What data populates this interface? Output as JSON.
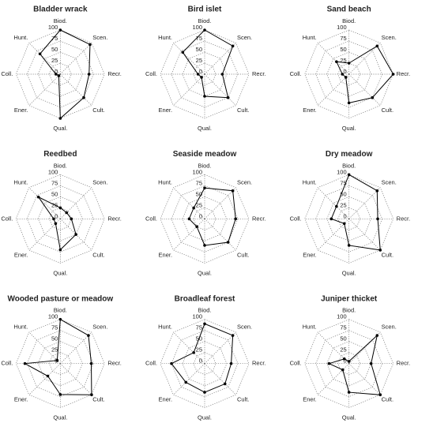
{
  "chart_data": [
    {
      "type": "radar",
      "title": "Bladder wrack",
      "categories": [
        "Biod.",
        "Scen.",
        "Recr.",
        "Cult.",
        "Qual.",
        "Ener.",
        "Coll.",
        "Hunt."
      ],
      "values": [
        100,
        95,
        65,
        75,
        100,
        5,
        10,
        65
      ],
      "rlim": [
        0,
        100
      ],
      "rticks": [
        0,
        25,
        50,
        75,
        100
      ],
      "color": "#000000"
    },
    {
      "type": "radar",
      "title": "Bird islet",
      "categories": [
        "Biod.",
        "Scen.",
        "Recr.",
        "Cult.",
        "Qual.",
        "Ener.",
        "Coll.",
        "Hunt."
      ],
      "values": [
        100,
        90,
        40,
        75,
        50,
        10,
        15,
        70
      ],
      "rlim": [
        0,
        100
      ],
      "rticks": [
        0,
        25,
        50,
        75,
        100
      ],
      "color": "#000000"
    },
    {
      "type": "radar",
      "title": "Sand beach",
      "categories": [
        "Biod.",
        "Scen.",
        "Recr.",
        "Cult.",
        "Qual.",
        "Ener.",
        "Coll.",
        "Hunt."
      ],
      "values": [
        25,
        90,
        100,
        75,
        65,
        10,
        15,
        40
      ],
      "rlim": [
        0,
        100
      ],
      "rticks": [
        0,
        25,
        50,
        75,
        100
      ],
      "color": "#000000"
    },
    {
      "type": "radar",
      "title": "Reedbed",
      "categories": [
        "Biod.",
        "Scen.",
        "Recr.",
        "Cult.",
        "Qual.",
        "Ener.",
        "Coll.",
        "Hunt."
      ],
      "values": [
        25,
        20,
        25,
        50,
        70,
        15,
        15,
        70
      ],
      "rlim": [
        0,
        100
      ],
      "rticks": [
        0,
        25,
        50,
        75,
        100
      ],
      "color": "#000000"
    },
    {
      "type": "radar",
      "title": "Seaside meadow",
      "categories": [
        "Biod.",
        "Scen.",
        "Recr.",
        "Cult.",
        "Qual.",
        "Ener.",
        "Coll.",
        "Hunt."
      ],
      "values": [
        70,
        90,
        70,
        75,
        60,
        25,
        35,
        35
      ],
      "rlim": [
        0,
        100
      ],
      "rticks": [
        0,
        25,
        50,
        75,
        100
      ],
      "color": "#000000"
    },
    {
      "type": "radar",
      "title": "Dry meadow",
      "categories": [
        "Biod.",
        "Scen.",
        "Recr.",
        "Cult.",
        "Qual.",
        "Ener.",
        "Coll.",
        "Hunt."
      ],
      "values": [
        100,
        90,
        65,
        100,
        60,
        15,
        40,
        40
      ],
      "rlim": [
        0,
        100
      ],
      "rticks": [
        0,
        25,
        50,
        75,
        100
      ],
      "color": "#000000"
    },
    {
      "type": "radar",
      "title": "Wooded pasture or meadow",
      "categories": [
        "Biod.",
        "Scen.",
        "Recr.",
        "Cult.",
        "Qual.",
        "Ener.",
        "Coll.",
        "Hunt."
      ],
      "values": [
        100,
        90,
        70,
        100,
        70,
        40,
        80,
        10
      ],
      "rlim": [
        0,
        100
      ],
      "rticks": [
        0,
        25,
        50,
        75,
        100
      ],
      "color": "#000000"
    },
    {
      "type": "radar",
      "title": "Broadleaf forest",
      "categories": [
        "Biod.",
        "Scen.",
        "Recr.",
        "Cult.",
        "Qual.",
        "Ener.",
        "Coll.",
        "Hunt."
      ],
      "values": [
        90,
        90,
        60,
        65,
        65,
        60,
        75,
        35
      ],
      "rlim": [
        0,
        100
      ],
      "rticks": [
        0,
        25,
        50,
        75,
        100
      ],
      "color": "#000000"
    },
    {
      "type": "radar",
      "title": "Juniper thicket",
      "categories": [
        "Biod.",
        "Scen.",
        "Recr.",
        "Cult.",
        "Qual.",
        "Ener.",
        "Coll.",
        "Hunt."
      ],
      "values": [
        5,
        90,
        50,
        100,
        65,
        20,
        45,
        15
      ],
      "rlim": [
        0,
        100
      ],
      "rticks": [
        0,
        25,
        50,
        75,
        100
      ],
      "color": "#000000"
    }
  ]
}
